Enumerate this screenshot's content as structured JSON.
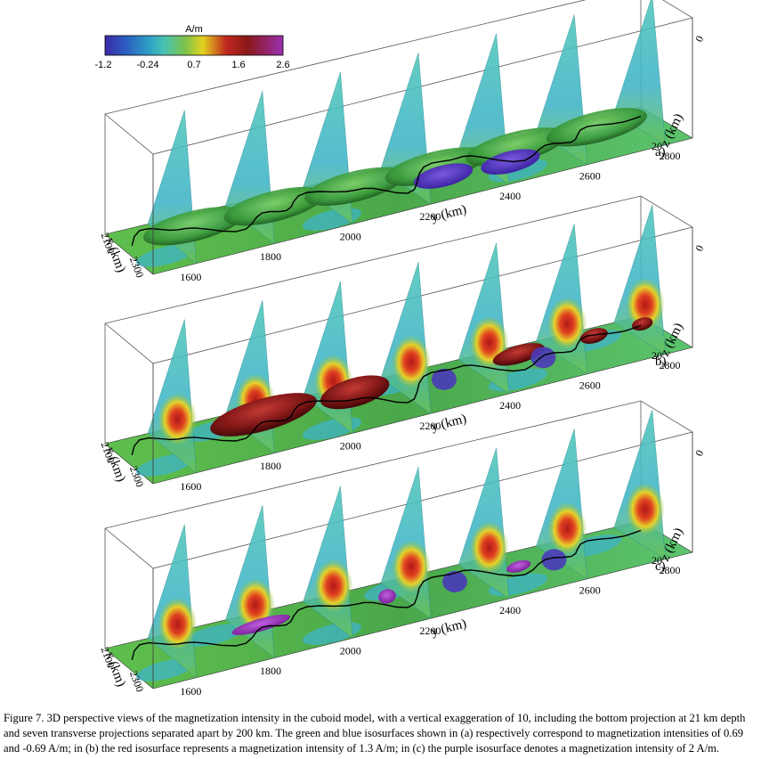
{
  "colorbar": {
    "unit": "A/m",
    "tick_labels": [
      "-1.2",
      "-0.24",
      "0.7",
      "1.6",
      "2.6"
    ],
    "colors": [
      "#3a2aa6",
      "#2fa0c6",
      "#48c2b4",
      "#7cc24c",
      "#e2d21e",
      "#c02820",
      "#8a1818",
      "#9a30b0"
    ]
  },
  "panels": [
    {
      "label": "a)",
      "iso": "green-blue"
    },
    {
      "label": "b)",
      "iso": "red-blue"
    },
    {
      "label": "c)",
      "iso": "purple"
    }
  ],
  "axes": {
    "y_label": "y (km)",
    "x_label": "x (km)",
    "z_label": "z (km)",
    "y_ticks": [
      "1600",
      "1800",
      "2000",
      "2200",
      "2400",
      "2600",
      "2800"
    ],
    "x_ticks": [
      "2100",
      "2300"
    ],
    "z_ticks": [
      "0",
      "20"
    ]
  },
  "caption": {
    "line1": "Figure 7. 3D perspective views of the magnetization intensity in the cuboid model, with a vertical exaggeration of 10, including the bottom projection at 21 km depth",
    "line2": "and seven transverse projections separated apart by 200 km. The green and blue isosurfaces shown in (a) respectively correspond to magnetization intensities of 0.69",
    "line3": "and -0.69 A/m; in (b) the red isosurface represents a magnetization intensity of 1.3 A/m; in (c) the purple isosurface denotes a magnetization intensity of 2 A/m."
  }
}
